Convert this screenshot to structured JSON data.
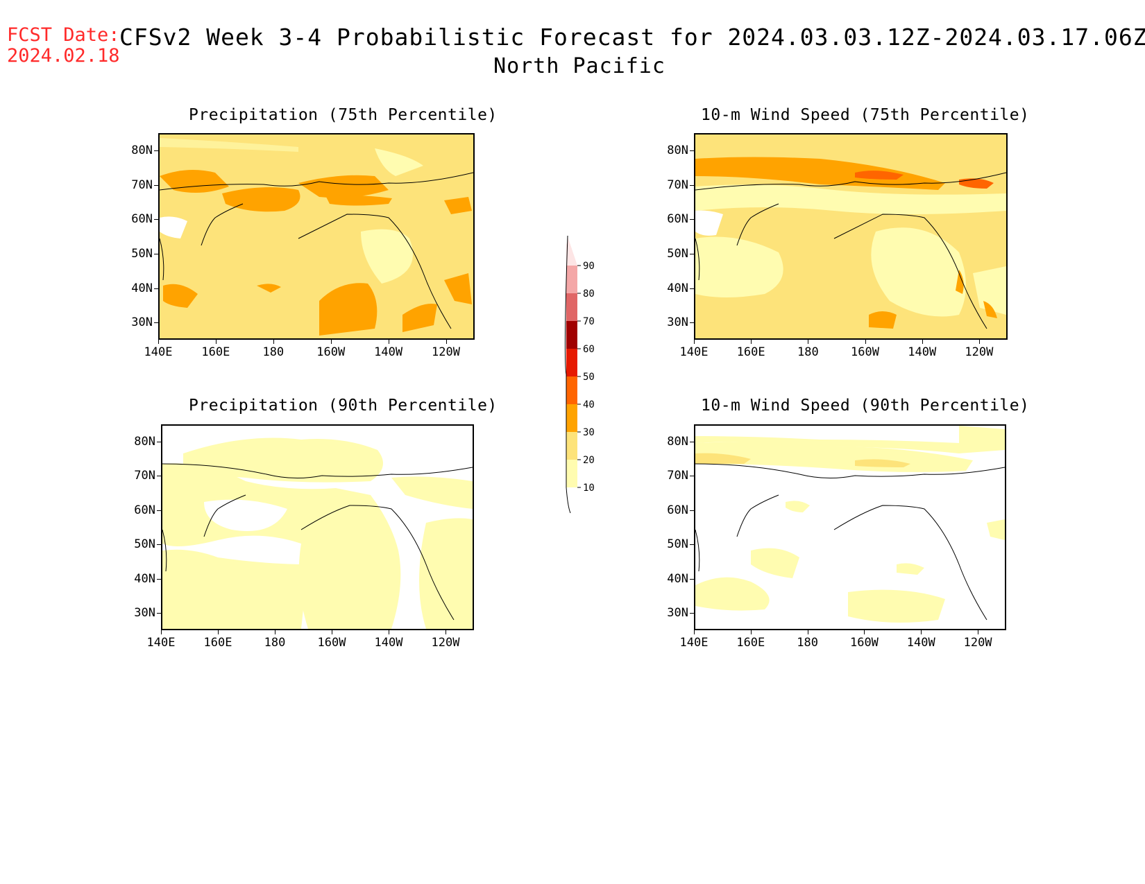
{
  "header": {
    "fcst_label": "FCST Date:",
    "fcst_date": "2024.02.18",
    "title": "CFSv2 Week 3-4 Probabilistic Forecast for 2024.03.03.12Z-2024.03.17.06Z",
    "region": "North Pacific"
  },
  "panels": [
    {
      "title": "Precipitation (75th Percentile)"
    },
    {
      "title": "10-m Wind Speed (75th Percentile)"
    },
    {
      "title": "Precipitation (90th Percentile)"
    },
    {
      "title": "10-m Wind Speed (90th Percentile)"
    }
  ],
  "axes": {
    "lat_labels": [
      "80N",
      "70N",
      "60N",
      "50N",
      "40N",
      "30N"
    ],
    "lon_labels": [
      "140E",
      "160E",
      "180",
      "160W",
      "140W",
      "120W"
    ]
  },
  "colorbar": {
    "levels": [
      "10",
      "20",
      "30",
      "40",
      "50",
      "60",
      "70",
      "80",
      "90"
    ],
    "colors": [
      "#fffcb0",
      "#fde37a",
      "#ffa300",
      "#ff6500",
      "#e61900",
      "#a00000",
      "#e06666",
      "#f4a7a7",
      "#fde5e5"
    ]
  },
  "chart_data": {
    "type": "heatmap",
    "description_units": "probability (%)",
    "fill_colors": {
      "10-20": "#fffcb0",
      "20-30": "#fde37a",
      "30-40": "#ffa300",
      "40-50": "#ff6500"
    }
  }
}
